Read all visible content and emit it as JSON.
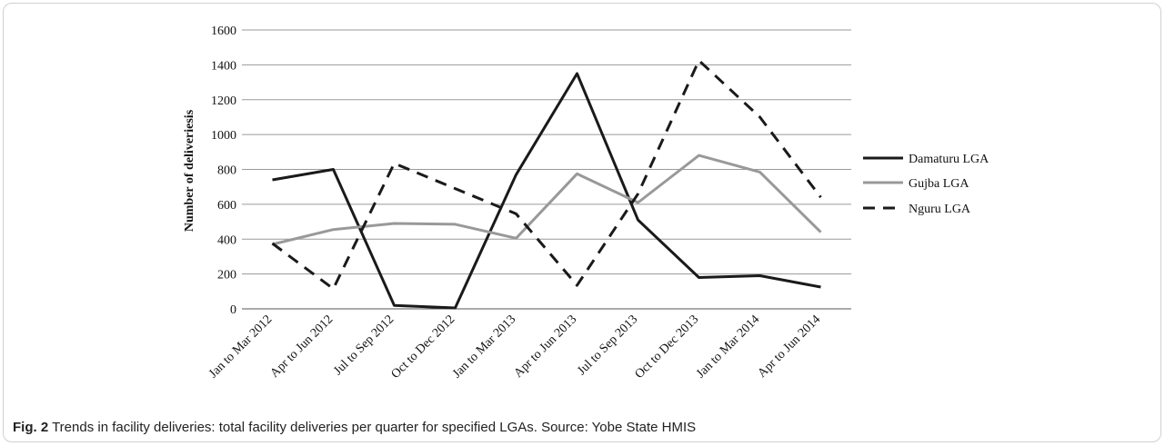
{
  "chart_data": {
    "type": "line",
    "ylabel": "Number of deliveriesis",
    "xlabel": "",
    "ylim": [
      0,
      1600
    ],
    "yticks": [
      0,
      200,
      400,
      600,
      800,
      1000,
      1200,
      1400,
      1600
    ],
    "grid": "horizontal",
    "legend": "right",
    "categories": [
      "Jan to Mar 2012",
      "Apr to Jun 2012",
      "Jul to Sep 2012",
      "Oct to Dec 2012",
      "Jan to Mar 2013",
      "Apr to Jun 2013",
      "Jul to Sep 2013",
      "Oct to Dec 2013",
      "Jan to Mar 2014",
      "Apr to Jun 2014"
    ],
    "series": [
      {
        "name": "Damaturu LGA",
        "color": "#1a1a1a",
        "dash": "solid",
        "values": [
          740,
          800,
          20,
          5,
          770,
          1350,
          510,
          180,
          190,
          125
        ]
      },
      {
        "name": "Gujba LGA",
        "color": "#999999",
        "dash": "solid",
        "values": [
          370,
          455,
          490,
          485,
          405,
          775,
          610,
          880,
          785,
          440
        ]
      },
      {
        "name": "Nguru LGA",
        "color": "#1a1a1a",
        "dash": "dashed",
        "values": [
          375,
          115,
          835,
          690,
          545,
          135,
          660,
          1425,
          1100,
          640
        ]
      }
    ]
  },
  "caption": {
    "label": "Fig. 2",
    "text": "Trends in facility deliveries: total facility deliveries per quarter for specified LGAs. Source: Yobe State HMIS"
  }
}
